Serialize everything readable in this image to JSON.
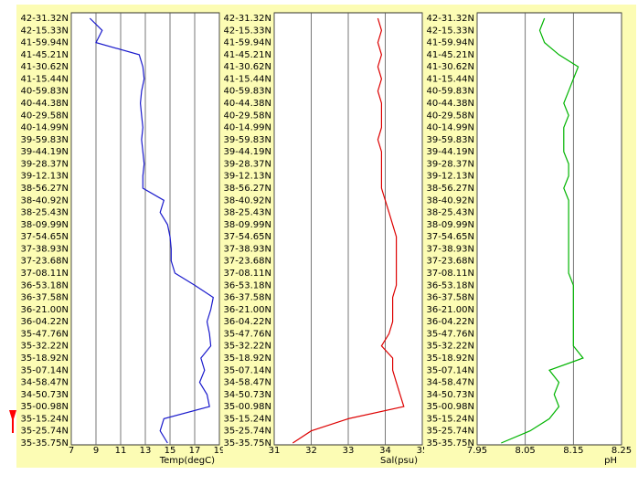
{
  "chart_data": [
    {
      "type": "line",
      "x_label": "Temp(degC)",
      "color": "#1a1acc",
      "categories": [
        "42-31.32N",
        "42-15.33N",
        "41-59.94N",
        "41-45.21N",
        "41-30.62N",
        "41-15.44N",
        "40-59.83N",
        "40-44.38N",
        "40-29.58N",
        "40-14.99N",
        "39-59.83N",
        "39-44.19N",
        "39-28.37N",
        "39-12.13N",
        "38-56.27N",
        "38-40.92N",
        "38-25.43N",
        "38-09.99N",
        "37-54.65N",
        "37-38.93N",
        "37-23.68N",
        "37-08.11N",
        "36-53.18N",
        "36-37.58N",
        "36-21.00N",
        "36-04.22N",
        "35-47.76N",
        "35-32.22N",
        "35-18.92N",
        "35-07.14N",
        "34-58.47N",
        "34-50.73N",
        "35-00.98N",
        "35-15.24N",
        "35-25.74N",
        "35-35.75N"
      ],
      "values": [
        8.5,
        9.5,
        9.0,
        12.5,
        12.8,
        12.9,
        12.7,
        12.6,
        12.7,
        12.8,
        12.7,
        12.8,
        12.9,
        12.8,
        12.8,
        14.5,
        14.2,
        14.8,
        15.0,
        15.1,
        15.1,
        15.4,
        17.0,
        18.5,
        18.3,
        18.0,
        18.2,
        18.3,
        17.5,
        17.8,
        17.4,
        18.0,
        18.2,
        14.5,
        14.2,
        14.8
      ],
      "xlim": [
        7,
        19
      ],
      "xticks": [
        7,
        9,
        11,
        13,
        15,
        17,
        19
      ],
      "grid": true
    },
    {
      "type": "line",
      "x_label": "Sal(psu)",
      "color": "#dd0000",
      "categories": [
        "42-31.32N",
        "42-15.33N",
        "41-59.94N",
        "41-45.21N",
        "41-30.62N",
        "41-15.44N",
        "40-59.83N",
        "40-44.38N",
        "40-29.58N",
        "40-14.99N",
        "39-59.83N",
        "39-44.19N",
        "39-28.37N",
        "39-12.13N",
        "38-56.27N",
        "38-40.92N",
        "38-25.43N",
        "38-09.99N",
        "37-54.65N",
        "37-38.93N",
        "37-23.68N",
        "37-08.11N",
        "36-53.18N",
        "36-37.58N",
        "36-21.00N",
        "36-04.22N",
        "35-47.76N",
        "35-32.22N",
        "35-18.92N",
        "35-07.14N",
        "34-58.47N",
        "34-50.73N",
        "35-00.98N",
        "35-15.24N",
        "35-25.74N",
        "35-35.75N"
      ],
      "values": [
        33.8,
        33.9,
        33.8,
        33.9,
        33.8,
        33.9,
        33.8,
        33.9,
        33.9,
        33.9,
        33.8,
        33.9,
        33.9,
        33.9,
        33.9,
        34.0,
        34.1,
        34.2,
        34.3,
        34.3,
        34.3,
        34.3,
        34.3,
        34.2,
        34.2,
        34.2,
        34.1,
        33.9,
        34.2,
        34.2,
        34.3,
        34.4,
        34.5,
        33.0,
        32.0,
        31.5
      ],
      "xlim": [
        31,
        35
      ],
      "xticks": [
        31,
        32,
        33,
        34,
        35
      ],
      "grid": true
    },
    {
      "type": "line",
      "x_label": "pH",
      "color": "#00b400",
      "categories": [
        "42-31.32N",
        "42-15.33N",
        "41-59.94N",
        "41-45.21N",
        "41-30.62N",
        "41-15.44N",
        "40-59.83N",
        "40-44.38N",
        "40-29.58N",
        "40-14.99N",
        "39-59.83N",
        "39-44.19N",
        "39-28.37N",
        "39-12.13N",
        "38-56.27N",
        "38-40.92N",
        "38-25.43N",
        "38-09.99N",
        "37-54.65N",
        "37-38.93N",
        "37-23.68N",
        "37-08.11N",
        "36-53.18N",
        "36-37.58N",
        "36-21.00N",
        "36-04.22N",
        "35-47.76N",
        "35-32.22N",
        "35-18.92N",
        "35-07.14N",
        "34-58.47N",
        "34-50.73N",
        "35-00.98N",
        "35-15.24N",
        "35-25.74N",
        "35-35.75N"
      ],
      "values": [
        8.09,
        8.08,
        8.09,
        8.12,
        8.16,
        8.15,
        8.14,
        8.13,
        8.14,
        8.13,
        8.13,
        8.13,
        8.14,
        8.14,
        8.13,
        8.14,
        8.14,
        8.14,
        8.14,
        8.14,
        8.14,
        8.14,
        8.15,
        8.15,
        8.15,
        8.15,
        8.15,
        8.15,
        8.17,
        8.1,
        8.12,
        8.11,
        8.12,
        8.1,
        8.06,
        8.0
      ],
      "xlim": [
        7.95,
        8.25
      ],
      "xticks": [
        7.95,
        8.05,
        8.15,
        8.25
      ],
      "grid": true
    }
  ]
}
